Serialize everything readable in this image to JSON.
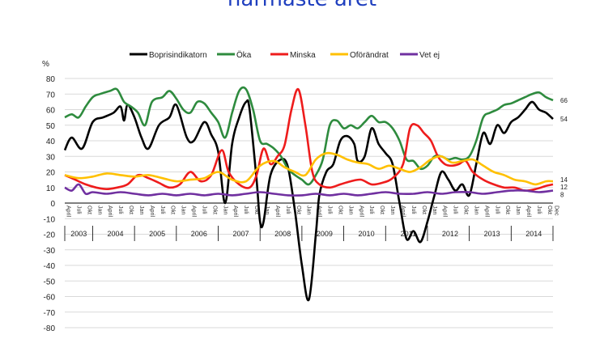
{
  "chart_data": {
    "type": "line",
    "title": "närmaste året",
    "ylabel": "%",
    "ylim": [
      -80,
      80
    ],
    "yticks": [
      80,
      70,
      60,
      50,
      40,
      30,
      20,
      10,
      0,
      -10,
      -20,
      -30,
      -40,
      -50,
      -60,
      -70,
      -80
    ],
    "x_start": "2003-04",
    "x_end": "2014-12",
    "years": [
      "2003",
      "2004",
      "2005",
      "2006",
      "2007",
      "2008",
      "2009",
      "2010",
      "2011",
      "2012",
      "2013",
      "2014"
    ],
    "month_labels": [
      "Jan",
      "April",
      "Juli",
      "Okt"
    ],
    "last_month_label": "Dec",
    "grid": true,
    "legend_position": "top",
    "series": [
      {
        "name": "Boprisindikatorn",
        "color": "#000000",
        "keypoints": [
          [
            "2003-04",
            34
          ],
          [
            "2003-06",
            42
          ],
          [
            "2003-09",
            35
          ],
          [
            "2003-12",
            52
          ],
          [
            "2004-03",
            55
          ],
          [
            "2004-06",
            58
          ],
          [
            "2004-08",
            62
          ],
          [
            "2004-09",
            53
          ],
          [
            "2004-10",
            63
          ],
          [
            "2004-12",
            55
          ],
          [
            "2005-02",
            42
          ],
          [
            "2005-04",
            35
          ],
          [
            "2005-07",
            50
          ],
          [
            "2005-10",
            55
          ],
          [
            "2005-12",
            63
          ],
          [
            "2006-03",
            42
          ],
          [
            "2006-05",
            40
          ],
          [
            "2006-08",
            52
          ],
          [
            "2006-10",
            44
          ],
          [
            "2006-12",
            33
          ],
          [
            "2007-02",
            0
          ],
          [
            "2007-04",
            38
          ],
          [
            "2007-06",
            55
          ],
          [
            "2007-08",
            65
          ],
          [
            "2007-09",
            60
          ],
          [
            "2007-11",
            15
          ],
          [
            "2007-12",
            -12
          ],
          [
            "2008-01",
            -12
          ],
          [
            "2008-03",
            18
          ],
          [
            "2008-06",
            28
          ],
          [
            "2008-08",
            23
          ],
          [
            "2008-10",
            -5
          ],
          [
            "2008-12",
            -40
          ],
          [
            "2009-02",
            -62
          ],
          [
            "2009-04",
            -20
          ],
          [
            "2009-05",
            5
          ],
          [
            "2009-07",
            20
          ],
          [
            "2009-09",
            25
          ],
          [
            "2009-11",
            40
          ],
          [
            "2010-01",
            43
          ],
          [
            "2010-03",
            38
          ],
          [
            "2010-04",
            27
          ],
          [
            "2010-06",
            30
          ],
          [
            "2010-08",
            48
          ],
          [
            "2010-10",
            38
          ],
          [
            "2010-12",
            32
          ],
          [
            "2011-02",
            25
          ],
          [
            "2011-04",
            0
          ],
          [
            "2011-06",
            -23
          ],
          [
            "2011-08",
            -18
          ],
          [
            "2011-10",
            -25
          ],
          [
            "2011-12",
            -12
          ],
          [
            "2012-02",
            5
          ],
          [
            "2012-04",
            20
          ],
          [
            "2012-06",
            15
          ],
          [
            "2012-08",
            8
          ],
          [
            "2012-10",
            12
          ],
          [
            "2012-12",
            5
          ],
          [
            "2013-02",
            25
          ],
          [
            "2013-04",
            45
          ],
          [
            "2013-06",
            38
          ],
          [
            "2013-08",
            50
          ],
          [
            "2013-10",
            45
          ],
          [
            "2013-12",
            52
          ],
          [
            "2014-02",
            55
          ],
          [
            "2014-04",
            60
          ],
          [
            "2014-06",
            65
          ],
          [
            "2014-08",
            60
          ],
          [
            "2014-10",
            58
          ],
          [
            "2014-12",
            54
          ]
        ]
      },
      {
        "name": "Öka",
        "color": "#2e8b3e",
        "keypoints": [
          [
            "2003-04",
            55
          ],
          [
            "2003-06",
            57
          ],
          [
            "2003-08",
            55
          ],
          [
            "2003-10",
            62
          ],
          [
            "2003-12",
            68
          ],
          [
            "2004-02",
            70
          ],
          [
            "2004-05",
            72
          ],
          [
            "2004-07",
            73
          ],
          [
            "2004-09",
            65
          ],
          [
            "2004-11",
            62
          ],
          [
            "2005-01",
            58
          ],
          [
            "2005-03",
            50
          ],
          [
            "2005-05",
            65
          ],
          [
            "2005-08",
            68
          ],
          [
            "2005-10",
            72
          ],
          [
            "2005-12",
            67
          ],
          [
            "2006-02",
            60
          ],
          [
            "2006-04",
            58
          ],
          [
            "2006-06",
            65
          ],
          [
            "2006-08",
            64
          ],
          [
            "2006-10",
            58
          ],
          [
            "2006-12",
            52
          ],
          [
            "2007-02",
            42
          ],
          [
            "2007-04",
            58
          ],
          [
            "2007-06",
            72
          ],
          [
            "2007-08",
            73
          ],
          [
            "2007-10",
            60
          ],
          [
            "2007-12",
            40
          ],
          [
            "2008-02",
            38
          ],
          [
            "2008-04",
            35
          ],
          [
            "2008-06",
            30
          ],
          [
            "2008-08",
            22
          ],
          [
            "2008-10",
            18
          ],
          [
            "2008-12",
            15
          ],
          [
            "2009-02",
            12
          ],
          [
            "2009-04",
            18
          ],
          [
            "2009-06",
            28
          ],
          [
            "2009-08",
            50
          ],
          [
            "2009-10",
            53
          ],
          [
            "2009-12",
            48
          ],
          [
            "2010-02",
            50
          ],
          [
            "2010-04",
            48
          ],
          [
            "2010-06",
            52
          ],
          [
            "2010-08",
            56
          ],
          [
            "2010-10",
            52
          ],
          [
            "2010-12",
            52
          ],
          [
            "2011-02",
            48
          ],
          [
            "2011-04",
            40
          ],
          [
            "2011-06",
            28
          ],
          [
            "2011-08",
            27
          ],
          [
            "2011-10",
            22
          ],
          [
            "2011-12",
            24
          ],
          [
            "2012-02",
            30
          ],
          [
            "2012-04",
            30
          ],
          [
            "2012-06",
            28
          ],
          [
            "2012-08",
            29
          ],
          [
            "2012-10",
            28
          ],
          [
            "2012-12",
            30
          ],
          [
            "2013-02",
            40
          ],
          [
            "2013-04",
            55
          ],
          [
            "2013-06",
            58
          ],
          [
            "2013-08",
            60
          ],
          [
            "2013-10",
            63
          ],
          [
            "2013-12",
            64
          ],
          [
            "2014-02",
            66
          ],
          [
            "2014-04",
            68
          ],
          [
            "2014-06",
            70
          ],
          [
            "2014-08",
            71
          ],
          [
            "2014-10",
            68
          ],
          [
            "2014-12",
            66
          ]
        ]
      },
      {
        "name": "Minska",
        "color": "#ee1c1c",
        "keypoints": [
          [
            "2003-04",
            18
          ],
          [
            "2003-07",
            15
          ],
          [
            "2003-10",
            12
          ],
          [
            "2004-01",
            10
          ],
          [
            "2004-04",
            9
          ],
          [
            "2004-07",
            10
          ],
          [
            "2004-10",
            12
          ],
          [
            "2005-01",
            18
          ],
          [
            "2005-04",
            16
          ],
          [
            "2005-07",
            13
          ],
          [
            "2005-10",
            10
          ],
          [
            "2006-01",
            12
          ],
          [
            "2006-04",
            20
          ],
          [
            "2006-07",
            14
          ],
          [
            "2006-10",
            18
          ],
          [
            "2007-01",
            34
          ],
          [
            "2007-03",
            20
          ],
          [
            "2007-06",
            12
          ],
          [
            "2007-09",
            10
          ],
          [
            "2007-11",
            18
          ],
          [
            "2008-01",
            35
          ],
          [
            "2008-03",
            25
          ],
          [
            "2008-05",
            30
          ],
          [
            "2008-07",
            37
          ],
          [
            "2008-09",
            60
          ],
          [
            "2008-11",
            73
          ],
          [
            "2009-01",
            50
          ],
          [
            "2009-03",
            20
          ],
          [
            "2009-05",
            12
          ],
          [
            "2009-08",
            10
          ],
          [
            "2009-11",
            12
          ],
          [
            "2010-02",
            14
          ],
          [
            "2010-05",
            15
          ],
          [
            "2010-08",
            12
          ],
          [
            "2010-11",
            13
          ],
          [
            "2011-02",
            16
          ],
          [
            "2011-05",
            25
          ],
          [
            "2011-07",
            48
          ],
          [
            "2011-09",
            50
          ],
          [
            "2011-11",
            45
          ],
          [
            "2012-01",
            40
          ],
          [
            "2012-03",
            30
          ],
          [
            "2012-05",
            25
          ],
          [
            "2012-07",
            24
          ],
          [
            "2012-09",
            25
          ],
          [
            "2012-11",
            27
          ],
          [
            "2013-01",
            20
          ],
          [
            "2013-04",
            15
          ],
          [
            "2013-07",
            12
          ],
          [
            "2013-10",
            10
          ],
          [
            "2014-01",
            10
          ],
          [
            "2014-04",
            8
          ],
          [
            "2014-07",
            9
          ],
          [
            "2014-10",
            11
          ],
          [
            "2014-12",
            12
          ]
        ]
      },
      {
        "name": "Oförändrat",
        "color": "#ffc000",
        "keypoints": [
          [
            "2003-04",
            18
          ],
          [
            "2003-08",
            16
          ],
          [
            "2003-12",
            17
          ],
          [
            "2004-04",
            19
          ],
          [
            "2004-08",
            18
          ],
          [
            "2004-12",
            17
          ],
          [
            "2005-04",
            18
          ],
          [
            "2005-08",
            16
          ],
          [
            "2005-12",
            14
          ],
          [
            "2006-04",
            15
          ],
          [
            "2006-08",
            16
          ],
          [
            "2006-12",
            20
          ],
          [
            "2007-04",
            15
          ],
          [
            "2007-08",
            14
          ],
          [
            "2007-12",
            24
          ],
          [
            "2008-04",
            27
          ],
          [
            "2008-07",
            23
          ],
          [
            "2008-10",
            20
          ],
          [
            "2009-01",
            18
          ],
          [
            "2009-04",
            28
          ],
          [
            "2009-07",
            32
          ],
          [
            "2009-10",
            31
          ],
          [
            "2010-01",
            28
          ],
          [
            "2010-04",
            26
          ],
          [
            "2010-07",
            25
          ],
          [
            "2010-10",
            22
          ],
          [
            "2011-01",
            24
          ],
          [
            "2011-04",
            22
          ],
          [
            "2011-07",
            20
          ],
          [
            "2011-10",
            23
          ],
          [
            "2012-01",
            28
          ],
          [
            "2012-04",
            30
          ],
          [
            "2012-07",
            26
          ],
          [
            "2012-10",
            27
          ],
          [
            "2013-01",
            28
          ],
          [
            "2013-04",
            24
          ],
          [
            "2013-07",
            20
          ],
          [
            "2013-10",
            18
          ],
          [
            "2014-01",
            15
          ],
          [
            "2014-04",
            14
          ],
          [
            "2014-07",
            12
          ],
          [
            "2014-10",
            14
          ],
          [
            "2014-12",
            14
          ]
        ]
      },
      {
        "name": "Vet ej",
        "color": "#7030a0",
        "keypoints": [
          [
            "2003-04",
            10
          ],
          [
            "2003-06",
            8
          ],
          [
            "2003-08",
            12
          ],
          [
            "2003-10",
            6
          ],
          [
            "2003-12",
            7
          ],
          [
            "2004-04",
            6
          ],
          [
            "2004-08",
            7
          ],
          [
            "2004-12",
            6
          ],
          [
            "2005-04",
            5
          ],
          [
            "2005-08",
            6
          ],
          [
            "2005-12",
            5
          ],
          [
            "2006-04",
            6
          ],
          [
            "2006-08",
            5
          ],
          [
            "2006-12",
            6
          ],
          [
            "2007-04",
            5
          ],
          [
            "2007-08",
            6
          ],
          [
            "2007-12",
            7
          ],
          [
            "2008-04",
            6
          ],
          [
            "2008-08",
            5
          ],
          [
            "2008-12",
            5
          ],
          [
            "2009-04",
            6
          ],
          [
            "2009-08",
            5
          ],
          [
            "2009-12",
            6
          ],
          [
            "2010-04",
            5
          ],
          [
            "2010-08",
            6
          ],
          [
            "2010-12",
            7
          ],
          [
            "2011-04",
            6
          ],
          [
            "2011-08",
            6
          ],
          [
            "2011-12",
            7
          ],
          [
            "2012-04",
            6
          ],
          [
            "2012-08",
            7
          ],
          [
            "2012-12",
            7
          ],
          [
            "2013-04",
            6
          ],
          [
            "2013-08",
            7
          ],
          [
            "2013-12",
            8
          ],
          [
            "2014-04",
            8
          ],
          [
            "2014-08",
            7
          ],
          [
            "2014-12",
            8
          ]
        ]
      }
    ],
    "end_labels": [
      {
        "series": "Öka",
        "text": "66",
        "value": 66
      },
      {
        "series": "Boprisindikatorn",
        "text": "54",
        "value": 54
      },
      {
        "series": "Oförändrat",
        "text": "14",
        "value": 14
      },
      {
        "series": "Minska",
        "text": "12",
        "value": 12
      },
      {
        "series": "Vet ej",
        "text": "8",
        "value": 8
      }
    ]
  }
}
